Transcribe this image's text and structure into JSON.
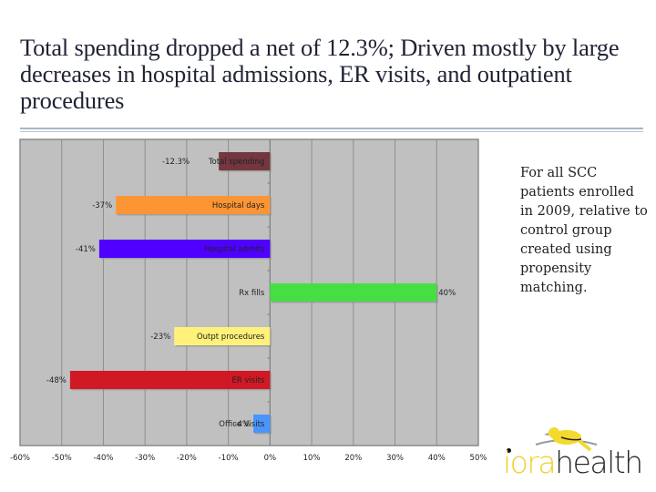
{
  "slide": {
    "title": "Total spending dropped a net of 12.3%; Driven mostly by large decreases in hospital admissions, ER visits, and outpatient procedures",
    "note": "For all SCC patients enrolled in 2009, relative to control group created using propensity matching.",
    "logo": {
      "part1": "iora",
      "part2": "health",
      "icon": "bird-icon"
    }
  },
  "chart_data": {
    "type": "bar",
    "orientation": "horizontal",
    "title": "",
    "xlabel": "",
    "ylabel": "",
    "xlim": [
      -60,
      50
    ],
    "xticks": [
      -60,
      -50,
      -40,
      -30,
      -20,
      -10,
      0,
      10,
      20,
      30,
      40,
      50
    ],
    "tick_suffix": "%",
    "grid": "vertical",
    "legend": "none",
    "categories": [
      "Total spending",
      "Hospital days",
      "Hospital admits",
      "Rx fills",
      "Outpt procedures",
      "ER visits",
      "Office Visits"
    ],
    "values": [
      -12.3,
      -37,
      -41,
      40,
      -23,
      -48,
      -4
    ],
    "value_labels": [
      "-12.3%",
      "-37%",
      "-41%",
      "40%",
      "-23%",
      "-48%",
      "-4%"
    ],
    "colors": [
      "#74363f",
      "#fb9534",
      "#4f00ff",
      "#45df44",
      "#fff17a",
      "#d11925",
      "#4a95fc"
    ],
    "background": "#c0c0c0",
    "gridline_color": "#8e8e8e"
  }
}
